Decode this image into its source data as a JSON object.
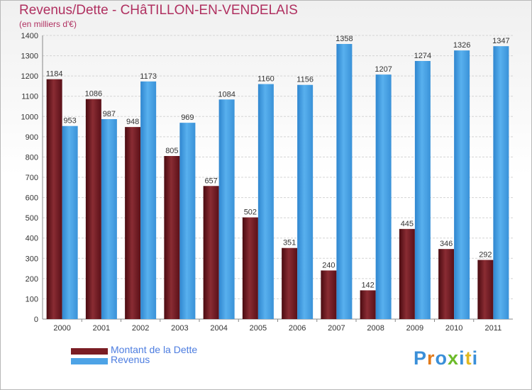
{
  "chart_data": {
    "type": "bar",
    "title": "Revenus/Dette - CHâTILLON-EN-VENDELAIS",
    "subtitle": "(en milliers d'€)",
    "categories": [
      "2000",
      "2001",
      "2002",
      "2003",
      "2004",
      "2005",
      "2006",
      "2007",
      "2008",
      "2009",
      "2010",
      "2011"
    ],
    "series": [
      {
        "name": "Montant de la Dette",
        "color": "#7a1d24",
        "values": [
          1184,
          1086,
          948,
          805,
          657,
          502,
          351,
          240,
          142,
          445,
          346,
          292
        ]
      },
      {
        "name": "Revenus",
        "color": "#4da3e6",
        "values": [
          953,
          987,
          1173,
          969,
          1084,
          1160,
          1156,
          1358,
          1207,
          1274,
          1326,
          1347
        ]
      }
    ],
    "yticks": [
      0,
      100,
      200,
      300,
      400,
      500,
      600,
      700,
      800,
      900,
      1000,
      1100,
      1200,
      1300,
      1400
    ],
    "ylim": [
      0,
      1400
    ],
    "grid": true,
    "legend_position": "bottom-left"
  },
  "branding": {
    "logo_letters": [
      "P",
      "r",
      "o",
      "x",
      "i",
      "t",
      "i"
    ]
  }
}
